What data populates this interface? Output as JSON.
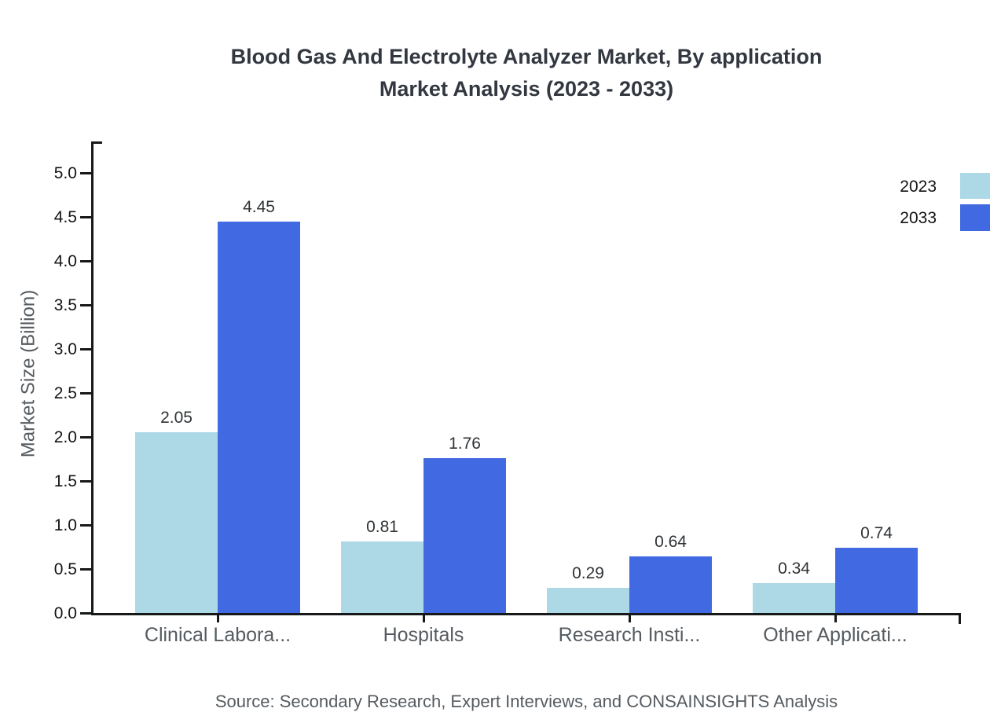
{
  "title": {
    "line1": "Blood Gas And Electrolyte Analyzer Market, By application",
    "line2": "Market Analysis (2023 - 2033)"
  },
  "source_text": "Source: Secondary Research, Expert Interviews, and CONSAINSIGHTS Analysis",
  "legend": {
    "items": [
      {
        "label": "2023",
        "color": "#ADD8E6"
      },
      {
        "label": "2033",
        "color": "#4169E1"
      }
    ]
  },
  "chart_data": {
    "type": "bar",
    "title": "Blood Gas And Electrolyte Analyzer Market, By application Market Analysis (2023 - 2033)",
    "categories": [
      "Clinical Labora...",
      "Hospitals",
      "Research Insti...",
      "Other Applicati..."
    ],
    "series": [
      {
        "name": "2023",
        "color": "#ADD8E6",
        "values": [
          2.05,
          0.81,
          0.29,
          0.34
        ]
      },
      {
        "name": "2033",
        "color": "#4169E1",
        "values": [
          4.45,
          1.76,
          0.64,
          0.74
        ]
      }
    ],
    "xlabel": "",
    "ylabel": "Market Size (Billion)",
    "ylim": [
      0.0,
      5.35
    ],
    "yticks": [
      0.0,
      0.5,
      1.0,
      1.5,
      2.0,
      2.5,
      3.0,
      3.5,
      4.0,
      4.5,
      5.0
    ],
    "value_labels": true,
    "grid": false,
    "legend_position": "top-right"
  }
}
